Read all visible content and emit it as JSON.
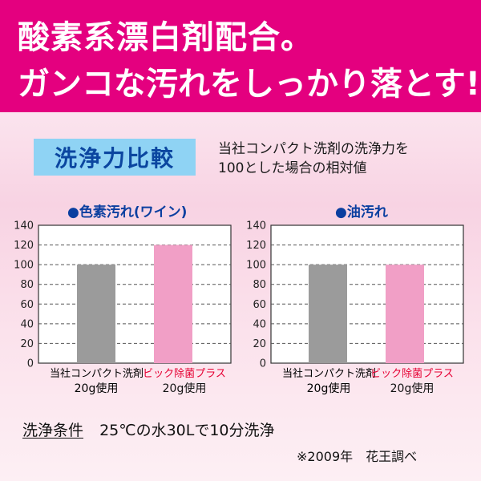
{
  "headline": {
    "line1": "酸素系漂白剤配合。",
    "line2": "ガンコな汚れをしっかり落とす!"
  },
  "comparison": {
    "label": "洗浄力比較",
    "description_line1": "当社コンパクト洗剤の洗浄力を",
    "description_line2": "100とした場合の相対値"
  },
  "chart_data": [
    {
      "type": "bar",
      "title": "●色素汚れ(ワイン)",
      "categories": [
        "当社コンパクト洗剤",
        "ビック除菌プラス"
      ],
      "category_units": [
        "20g使用",
        "20g使用"
      ],
      "values": [
        100,
        120
      ],
      "colors": [
        "#9b9b9b",
        "#f19fc6"
      ],
      "label_colors": [
        "#111111",
        "#e60033"
      ],
      "ylim": [
        0,
        140
      ],
      "yticks": [
        0,
        20,
        40,
        60,
        80,
        100,
        120,
        140
      ],
      "grid": true,
      "xlabel": "",
      "ylabel": ""
    },
    {
      "type": "bar",
      "title": "●油汚れ",
      "categories": [
        "当社コンパクト洗剤",
        "ビック除菌プラス"
      ],
      "category_units": [
        "20g使用",
        "20g使用"
      ],
      "values": [
        100,
        100
      ],
      "colors": [
        "#9b9b9b",
        "#f19fc6"
      ],
      "label_colors": [
        "#111111",
        "#e60033"
      ],
      "ylim": [
        0,
        140
      ],
      "yticks": [
        0,
        20,
        40,
        60,
        80,
        100,
        120,
        140
      ],
      "grid": true,
      "xlabel": "",
      "ylabel": ""
    }
  ],
  "conditions": {
    "label": "洗浄条件",
    "text": "25℃の水30Lで10分洗浄"
  },
  "note": "※2009年　花王調べ",
  "colors": {
    "banner": "#e4007f",
    "label_bg": "#8fd3f4",
    "title_blue": "#0b3fa0"
  }
}
